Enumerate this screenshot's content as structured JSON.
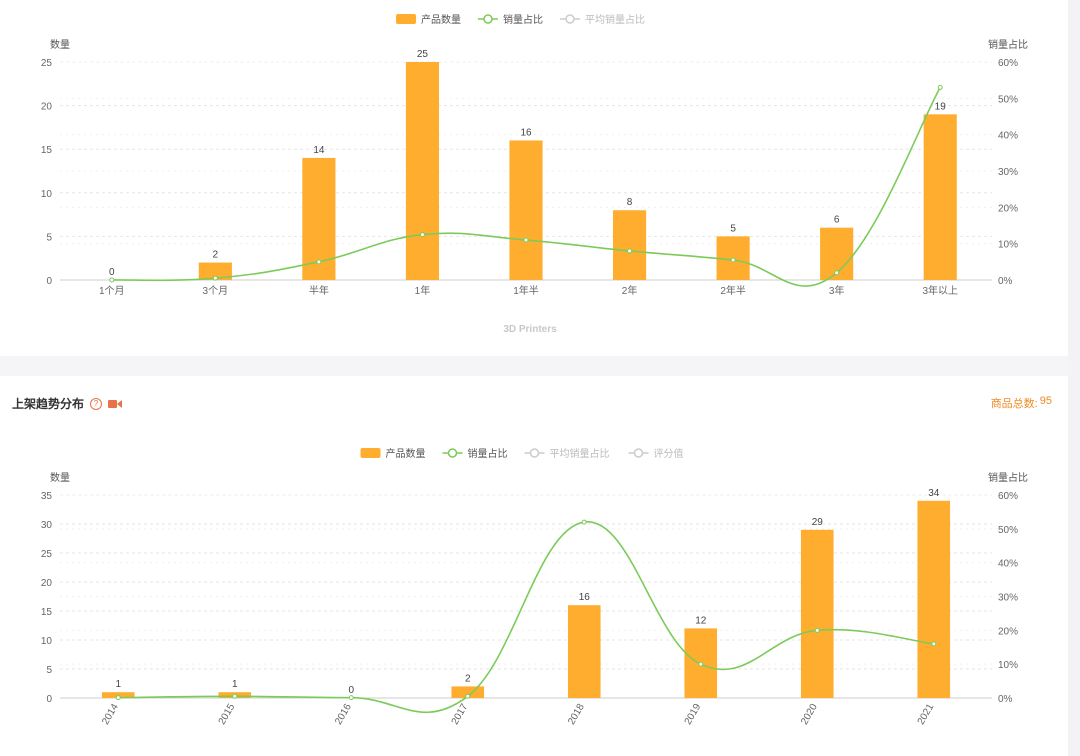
{
  "section2": {
    "title": "上架趋势分布",
    "total_label": "商品总数:",
    "total_value": "95"
  },
  "colors": {
    "bar": "#ffad2e",
    "line": "#7ccb5a",
    "inactive": "#cccccc"
  },
  "icons": [
    "help-icon",
    "video-camera-icon"
  ],
  "chart_data": [
    {
      "type": "bar",
      "title": "",
      "subtitle": "3D Printers",
      "legend_position": "top-center",
      "legend": [
        {
          "name": "产品数量",
          "kind": "bar",
          "active": true
        },
        {
          "name": "销量占比",
          "kind": "line",
          "active": true
        },
        {
          "name": "平均销量占比",
          "kind": "line",
          "active": false
        }
      ],
      "categories": [
        "1个月",
        "3个月",
        "半年",
        "1年",
        "1年半",
        "2年",
        "2年半",
        "3年",
        "3年以上"
      ],
      "series": [
        {
          "name": "产品数量",
          "type": "bar",
          "axis": "left",
          "values": [
            0,
            2,
            14,
            25,
            16,
            8,
            5,
            6,
            19
          ]
        },
        {
          "name": "销量占比",
          "type": "line",
          "axis": "right",
          "values": [
            0,
            0.5,
            5,
            12.5,
            11,
            8,
            5.5,
            2,
            53
          ]
        }
      ],
      "ylabel_left": "数量",
      "ylabel_right": "销量占比",
      "ylim_left": [
        0,
        25
      ],
      "ylim_right": [
        0,
        60
      ],
      "yticks_left": [
        "0",
        "5",
        "10",
        "15",
        "20",
        "25"
      ],
      "yticks_right": [
        "0%",
        "10%",
        "20%",
        "30%",
        "40%",
        "50%",
        "60%"
      ],
      "grid": true
    },
    {
      "type": "bar",
      "title": "",
      "legend_position": "top-center",
      "legend": [
        {
          "name": "产品数量",
          "kind": "bar",
          "active": true
        },
        {
          "name": "销量占比",
          "kind": "line",
          "active": true
        },
        {
          "name": "平均销量占比",
          "kind": "line",
          "active": false
        },
        {
          "name": "评分值",
          "kind": "line",
          "active": false
        }
      ],
      "categories": [
        "2014",
        "2015",
        "2016",
        "2017",
        "2018",
        "2019",
        "2020",
        "2021"
      ],
      "series": [
        {
          "name": "产品数量",
          "type": "bar",
          "axis": "left",
          "values": [
            1,
            1,
            0,
            2,
            16,
            12,
            29,
            34
          ]
        },
        {
          "name": "销量占比",
          "type": "line",
          "axis": "right",
          "values": [
            0.1,
            0.5,
            0.1,
            0.5,
            52,
            10,
            20,
            16
          ]
        }
      ],
      "ylabel_left": "数量",
      "ylabel_right": "销量占比",
      "ylim_left": [
        0,
        35
      ],
      "ylim_right": [
        0,
        60
      ],
      "yticks_left": [
        "0",
        "5",
        "10",
        "15",
        "20",
        "25",
        "30",
        "35"
      ],
      "yticks_right": [
        "0%",
        "10%",
        "20%",
        "30%",
        "40%",
        "50%",
        "60%"
      ],
      "xtick_rotation": -60,
      "grid": true
    }
  ]
}
